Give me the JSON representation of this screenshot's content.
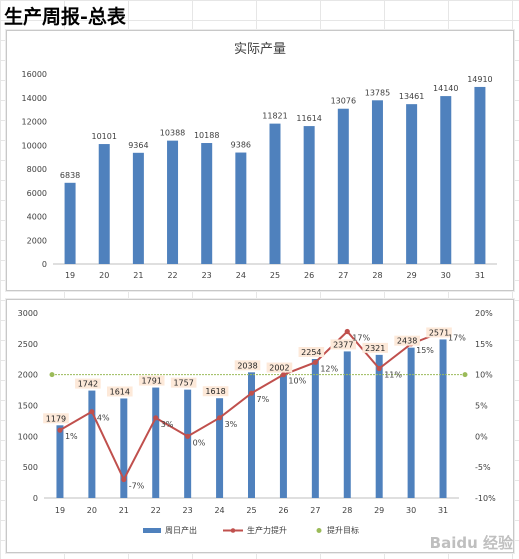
{
  "page_title": "生产周报-总表",
  "watermark": "Baidu 经验",
  "chart_data": [
    {
      "type": "bar",
      "title": "实际产量",
      "categories": [
        "19",
        "20",
        "21",
        "22",
        "23",
        "24",
        "25",
        "26",
        "27",
        "28",
        "29",
        "30",
        "31"
      ],
      "values": [
        6838,
        10101,
        9364,
        10388,
        10188,
        9386,
        11821,
        11614,
        13076,
        13785,
        13461,
        14140,
        14910
      ],
      "ylim": [
        0,
        16000
      ],
      "yticks": [
        0,
        2000,
        4000,
        6000,
        8000,
        10000,
        12000,
        14000,
        16000
      ],
      "grid": false,
      "colors": {
        "bar": "#4f81bd"
      }
    },
    {
      "type": "bar",
      "title": "",
      "categories": [
        "19",
        "20",
        "21",
        "22",
        "23",
        "24",
        "25",
        "26",
        "27",
        "28",
        "29",
        "30",
        "31"
      ],
      "series": [
        {
          "name": "周日产出",
          "type": "bar",
          "axis": "left",
          "values": [
            1179,
            1742,
            1614,
            1791,
            1757,
            1618,
            2038,
            2002,
            2254,
            2377,
            2321,
            2438,
            2571
          ]
        },
        {
          "name": "生产力提升",
          "type": "line",
          "axis": "right",
          "values": [
            1,
            4,
            -7,
            3,
            0,
            3,
            7,
            10,
            12,
            17,
            11,
            15,
            17
          ]
        },
        {
          "name": "提升目标",
          "type": "line",
          "axis": "right",
          "values": [
            10,
            10,
            10,
            10,
            10,
            10,
            10,
            10,
            10,
            10,
            10,
            10,
            10
          ]
        }
      ],
      "ylim_left": [
        0,
        3000
      ],
      "yticks_left": [
        0,
        500,
        1000,
        1500,
        2000,
        2500,
        3000
      ],
      "ylim_right": [
        -10,
        20
      ],
      "yticks_right": [
        "-10%",
        "-5%",
        "0%",
        "5%",
        "10%",
        "15%",
        "20%"
      ],
      "legend_position": "bottom",
      "colors": {
        "bar": "#4f81bd",
        "line": "#c0504d",
        "target": "#9bbb59",
        "label_bg": "#fde9d9"
      }
    }
  ]
}
